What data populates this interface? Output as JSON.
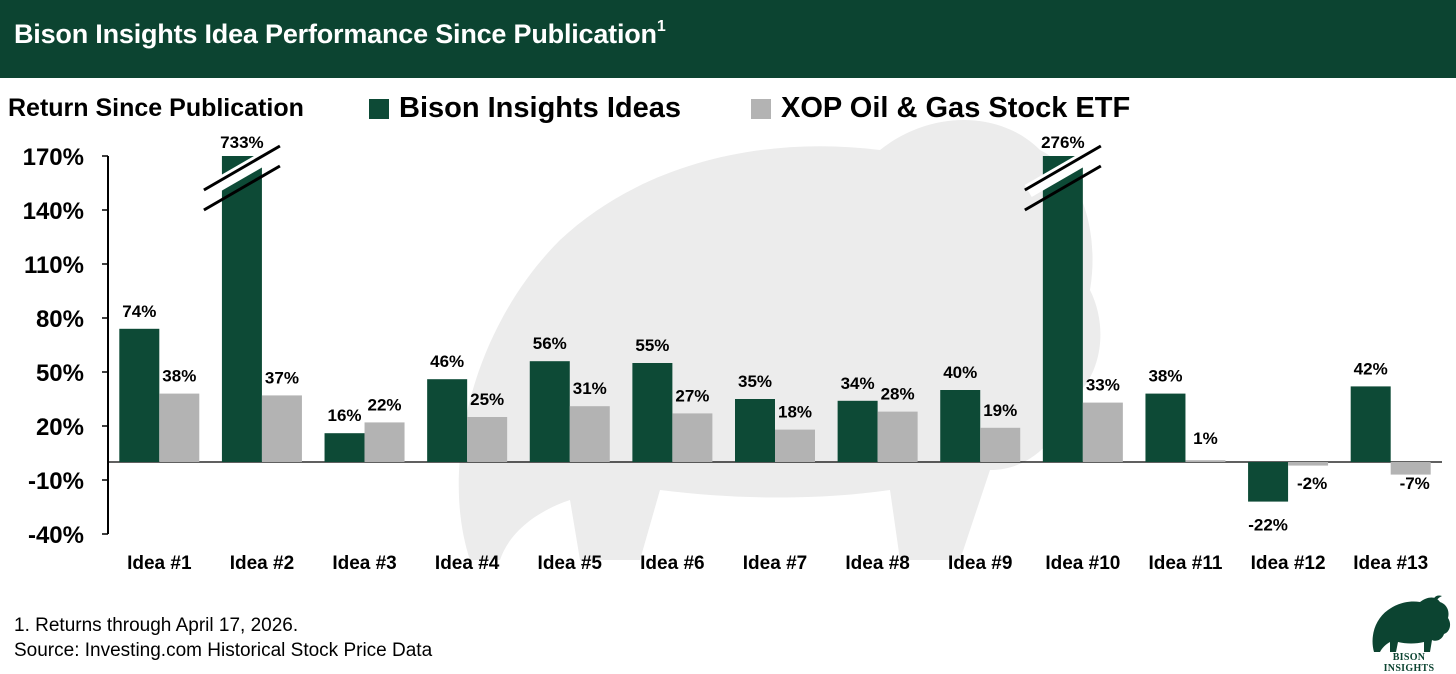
{
  "header": {
    "title": "Bison Insights Idea Performance Since Publication",
    "title_superscript": "1"
  },
  "colors": {
    "header_bg": "#0c4431",
    "bison_series": "#0d4a36",
    "xop_series": "#b3b3b3"
  },
  "footnotes": {
    "note": "1. Returns through April 17, 2026.",
    "source": "Source: Investing.com Historical Stock Price Data"
  },
  "logo": {
    "text": "BISON INSIGHTS",
    "icon": "bison-icon"
  },
  "chart_data": {
    "type": "bar",
    "title": "Bison Insights Idea Performance Since Publication",
    "ylabel": "Return Since Publication",
    "xlabel": "",
    "ylim": [
      -40,
      170
    ],
    "yticks": [
      170,
      140,
      110,
      80,
      50,
      20,
      -10,
      -40
    ],
    "tick_suffix": "%",
    "axis_break": true,
    "legend_position": "top",
    "categories": [
      "Idea #1",
      "Idea #2",
      "Idea #3",
      "Idea #4",
      "Idea #5",
      "Idea #6",
      "Idea #7",
      "Idea #8",
      "Idea #9",
      "Idea #10",
      "Idea #11",
      "Idea #12",
      "Idea #13"
    ],
    "series": [
      {
        "name": "Bison Insights Ideas",
        "values": [
          74,
          733,
          16,
          46,
          56,
          55,
          35,
          34,
          40,
          276,
          38,
          -22,
          42
        ],
        "labels": [
          "74%",
          "733%",
          "16%",
          "46%",
          "56%",
          "55%",
          "35%",
          "34%",
          "40%",
          "276%",
          "38%",
          "-22%",
          "42%"
        ]
      },
      {
        "name": "XOP Oil & Gas Stock ETF",
        "values": [
          38,
          37,
          22,
          25,
          31,
          27,
          18,
          28,
          19,
          33,
          1,
          -2,
          -7
        ],
        "labels": [
          "38%",
          "37%",
          "22%",
          "25%",
          "31%",
          "27%",
          "18%",
          "28%",
          "19%",
          "33%",
          "1%",
          "-2%",
          "-7%"
        ]
      }
    ]
  }
}
